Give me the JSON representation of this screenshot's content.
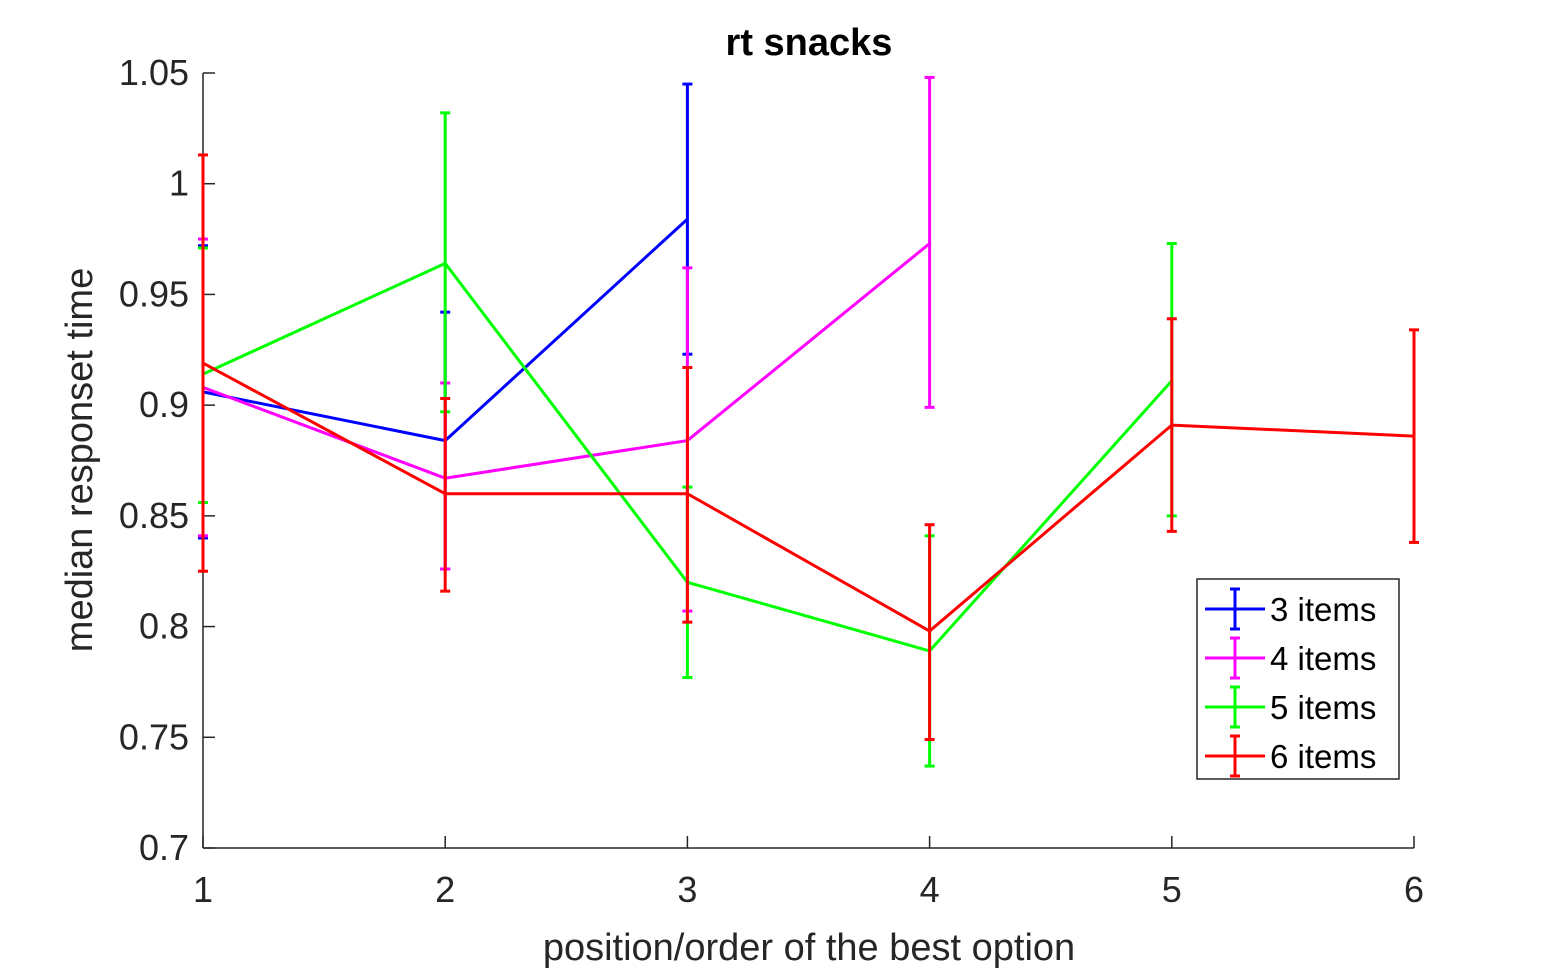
{
  "chart_data": {
    "type": "line",
    "title": "rt snacks",
    "xlabel": "position/order of the best option",
    "ylabel": "median responset time",
    "xlim": [
      1,
      6
    ],
    "ylim": [
      0.7,
      1.05
    ],
    "x_ticks": [
      "1",
      "2",
      "3",
      "4",
      "5",
      "6"
    ],
    "y_ticks": [
      "0.7",
      "0.75",
      "0.8",
      "0.85",
      "0.9",
      "0.95",
      "1",
      "1.05"
    ],
    "grid": false,
    "legend_position": "bottom-right",
    "error_bars": true,
    "series": [
      {
        "name": "3 items",
        "color": "#0000ff",
        "x": [
          1,
          2,
          3
        ],
        "y": [
          0.906,
          0.884,
          0.984
        ],
        "err_low": [
          0.84,
          0.826,
          0.923
        ],
        "err_high": [
          0.972,
          0.942,
          1.045
        ]
      },
      {
        "name": "4 items",
        "color": "#ff00ff",
        "x": [
          1,
          2,
          3,
          4
        ],
        "y": [
          0.908,
          0.867,
          0.884,
          0.973
        ],
        "err_low": [
          0.841,
          0.826,
          0.807,
          0.899
        ],
        "err_high": [
          0.975,
          0.91,
          0.962,
          1.048
        ]
      },
      {
        "name": "5 items",
        "color": "#00ff00",
        "x": [
          1,
          2,
          3,
          4,
          5
        ],
        "y": [
          0.914,
          0.964,
          0.82,
          0.789,
          0.911
        ],
        "err_low": [
          0.856,
          0.897,
          0.777,
          0.737,
          0.85
        ],
        "err_high": [
          0.971,
          1.032,
          0.863,
          0.841,
          0.973
        ]
      },
      {
        "name": "6 items",
        "color": "#ff0000",
        "x": [
          1,
          2,
          3,
          4,
          5,
          6
        ],
        "y": [
          0.919,
          0.86,
          0.86,
          0.798,
          0.891,
          0.886
        ],
        "err_low": [
          0.825,
          0.816,
          0.802,
          0.749,
          0.843,
          0.838
        ],
        "err_high": [
          1.013,
          0.903,
          0.917,
          0.846,
          0.939,
          0.934
        ]
      }
    ]
  }
}
